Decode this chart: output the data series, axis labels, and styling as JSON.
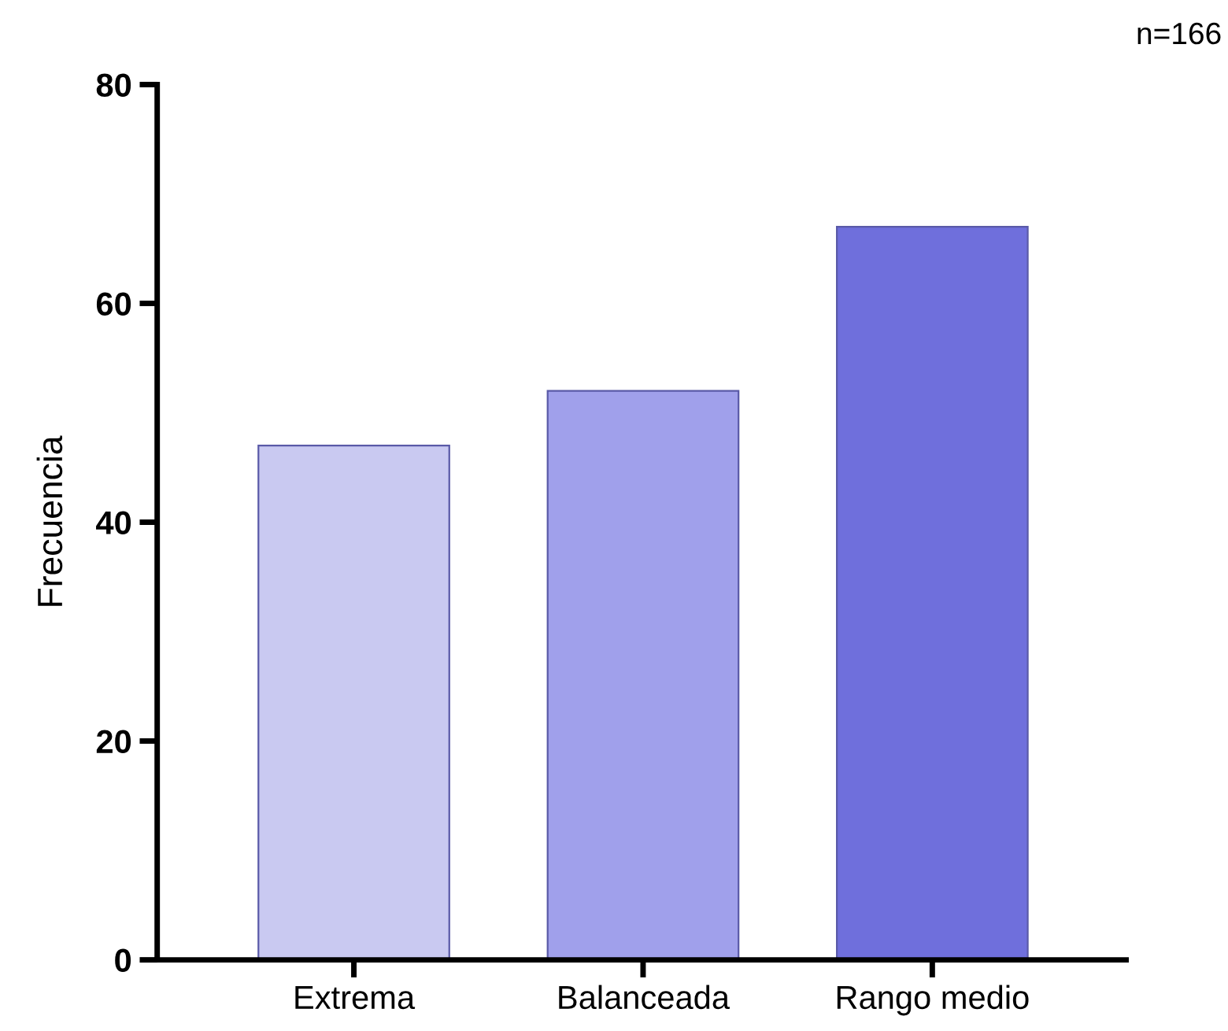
{
  "chart_data": {
    "type": "bar",
    "ylabel": "Frecuencia",
    "categories": [
      "Extrema",
      "Balanceada",
      "Rango medio"
    ],
    "values": [
      47,
      52,
      67
    ],
    "colors": [
      "#c9c9f1",
      "#a0a0eb",
      "#6f6fdc"
    ],
    "ylim": [
      0,
      80
    ],
    "yticks": [
      0,
      20,
      40,
      60,
      80
    ],
    "grid": false,
    "legend": false,
    "annotations": [
      "n=166"
    ]
  }
}
